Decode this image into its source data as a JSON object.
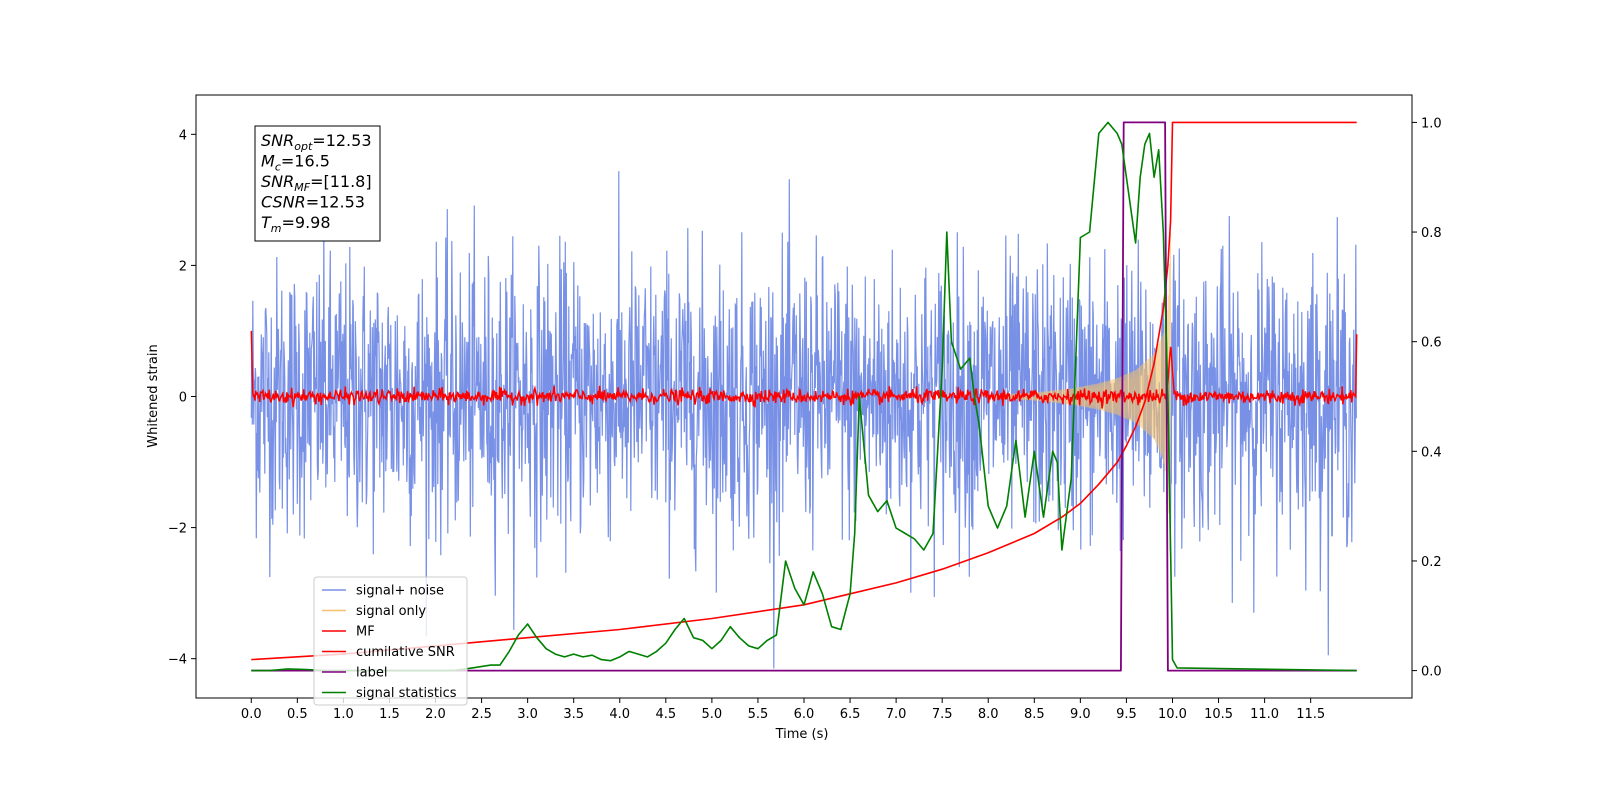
{
  "chart_data": {
    "type": "line",
    "title": "",
    "xlabel": "Time (s)",
    "ylabel": "Whitened strain",
    "xlim": [
      -0.6,
      12.6
    ],
    "ylim": [
      -4.6,
      4.6
    ],
    "y2lim": [
      -0.05,
      1.05
    ],
    "x_ticks": [
      0.0,
      0.5,
      1.0,
      1.5,
      2.0,
      2.5,
      3.0,
      3.5,
      4.0,
      4.5,
      5.0,
      5.5,
      6.0,
      6.5,
      7.0,
      7.5,
      8.0,
      8.5,
      9.0,
      9.5,
      10.0,
      10.5,
      11.0,
      11.5
    ],
    "x_tick_labels": [
      "0.0",
      "0.5",
      "1.0",
      "1.5",
      "2.0",
      "2.5",
      "3.0",
      "3.5",
      "4.0",
      "4.5",
      "5.0",
      "5.5",
      "6.0",
      "6.5",
      "7.0",
      "7.5",
      "8.0",
      "8.5",
      "9.0",
      "9.5",
      "10.0",
      "10.5",
      "11.0",
      "11.5"
    ],
    "y_ticks": [
      -4,
      -2,
      0,
      2,
      4
    ],
    "y_tick_labels": [
      "−4",
      "−2",
      "0",
      "2",
      "4"
    ],
    "y2_ticks": [
      0.0,
      0.2,
      0.4,
      0.6,
      0.8,
      1.0
    ],
    "y2_tick_labels": [
      "0.0",
      "0.2",
      "0.4",
      "0.6",
      "0.8",
      "1.0"
    ],
    "grid": false,
    "legend_placement": "lower-left",
    "annotation": {
      "lines": [
        {
          "sym": "SNR",
          "sub": "opt",
          "value": "=12.53"
        },
        {
          "sym": "M",
          "sub": "c",
          "value": "=16.5"
        },
        {
          "sym": "SNR",
          "sub": "MF",
          "value": "=[11.8]"
        },
        {
          "sym": "CSNR",
          "sub": "",
          "value": "=12.53"
        },
        {
          "sym": "T",
          "sub": "m",
          "value": "=9.98"
        }
      ]
    },
    "colors": {
      "signal_noise": "#7891e6",
      "signal_only": "#f5c26b",
      "mf": "#ff0000",
      "cumulative_snr": "#ff0000",
      "label": "#800080",
      "signal_statistics": "#008000"
    },
    "series": [
      {
        "name": "signal+ noise",
        "axis": "left",
        "style": "noise",
        "x_range": [
          0.0,
          12.0
        ],
        "mean": 0.0,
        "std": 1.0,
        "y_min_observed": -4.15,
        "y_max_observed": 4.18
      },
      {
        "name": "signal only",
        "axis": "left",
        "style": "chirp",
        "envelope": {
          "x": [
            8.0,
            8.5,
            8.9,
            9.2,
            9.4,
            9.6,
            9.8,
            9.9,
            9.95,
            9.98
          ],
          "amplitude": [
            0.02,
            0.06,
            0.12,
            0.2,
            0.28,
            0.4,
            0.65,
            0.95,
            1.4,
            2.5
          ]
        }
      },
      {
        "name": "MF",
        "axis": "left",
        "style": "mf",
        "x_range": [
          0.0,
          12.0
        ],
        "baseline_amplitude": 0.1,
        "peak_x": 9.98,
        "peak_value": 0.8,
        "edge_spikes": [
          {
            "x": 0.0,
            "value": 1.0
          },
          {
            "x": 12.0,
            "value": 0.95
          }
        ]
      },
      {
        "name": "cumilative SNR",
        "axis": "right",
        "x": [
          0.0,
          1.0,
          2.0,
          3.0,
          4.0,
          5.0,
          6.0,
          6.5,
          7.0,
          7.5,
          8.0,
          8.5,
          8.8,
          9.0,
          9.2,
          9.4,
          9.5,
          9.6,
          9.7,
          9.8,
          9.9,
          9.95,
          9.98,
          10.0,
          12.0
        ],
        "values": [
          0.02,
          0.03,
          0.045,
          0.06,
          0.075,
          0.095,
          0.12,
          0.14,
          0.16,
          0.185,
          0.215,
          0.25,
          0.28,
          0.305,
          0.34,
          0.38,
          0.41,
          0.445,
          0.49,
          0.56,
          0.66,
          0.74,
          0.82,
          1.0,
          1.0
        ]
      },
      {
        "name": "label",
        "axis": "right",
        "x": [
          0.0,
          9.44,
          9.47,
          9.92,
          9.95,
          12.0
        ],
        "values": [
          0.0,
          0.0,
          1.0,
          1.0,
          0.0,
          0.0
        ]
      },
      {
        "name": "signal statistics",
        "axis": "right",
        "x": [
          0.0,
          0.2,
          0.4,
          0.6,
          0.8,
          1.0,
          1.2,
          1.4,
          1.6,
          1.8,
          2.0,
          2.2,
          2.4,
          2.6,
          2.7,
          2.8,
          2.9,
          3.0,
          3.1,
          3.2,
          3.3,
          3.4,
          3.5,
          3.6,
          3.7,
          3.8,
          3.9,
          4.0,
          4.1,
          4.2,
          4.3,
          4.4,
          4.5,
          4.6,
          4.7,
          4.8,
          4.9,
          5.0,
          5.1,
          5.2,
          5.3,
          5.4,
          5.5,
          5.6,
          5.7,
          5.8,
          5.9,
          6.0,
          6.1,
          6.2,
          6.3,
          6.4,
          6.5,
          6.55,
          6.6,
          6.7,
          6.8,
          6.9,
          7.0,
          7.1,
          7.2,
          7.3,
          7.4,
          7.5,
          7.55,
          7.6,
          7.7,
          7.8,
          7.85,
          7.9,
          8.0,
          8.1,
          8.2,
          8.3,
          8.4,
          8.5,
          8.6,
          8.7,
          8.75,
          8.8,
          8.9,
          9.0,
          9.1,
          9.2,
          9.3,
          9.4,
          9.45,
          9.5,
          9.55,
          9.6,
          9.65,
          9.7,
          9.75,
          9.8,
          9.85,
          9.9,
          9.95,
          10.0,
          10.05,
          12.0
        ],
        "values": [
          0.0,
          0.0,
          0.003,
          0.002,
          0.0,
          0.0,
          0.0,
          0.0,
          0.0,
          0.0,
          0.0,
          0.0,
          0.005,
          0.01,
          0.01,
          0.035,
          0.065,
          0.085,
          0.06,
          0.04,
          0.03,
          0.025,
          0.03,
          0.025,
          0.028,
          0.02,
          0.018,
          0.025,
          0.035,
          0.03,
          0.025,
          0.035,
          0.05,
          0.075,
          0.095,
          0.06,
          0.055,
          0.04,
          0.055,
          0.08,
          0.06,
          0.045,
          0.04,
          0.055,
          0.065,
          0.2,
          0.15,
          0.12,
          0.18,
          0.14,
          0.08,
          0.075,
          0.14,
          0.25,
          0.5,
          0.32,
          0.29,
          0.31,
          0.26,
          0.25,
          0.24,
          0.22,
          0.25,
          0.55,
          0.8,
          0.6,
          0.55,
          0.57,
          0.5,
          0.45,
          0.3,
          0.26,
          0.3,
          0.42,
          0.28,
          0.4,
          0.28,
          0.4,
          0.38,
          0.22,
          0.35,
          0.79,
          0.8,
          0.98,
          1.0,
          0.98,
          0.96,
          0.9,
          0.84,
          0.78,
          0.9,
          0.96,
          0.98,
          0.9,
          0.95,
          0.8,
          0.5,
          0.02,
          0.005,
          0.0
        ]
      }
    ]
  }
}
